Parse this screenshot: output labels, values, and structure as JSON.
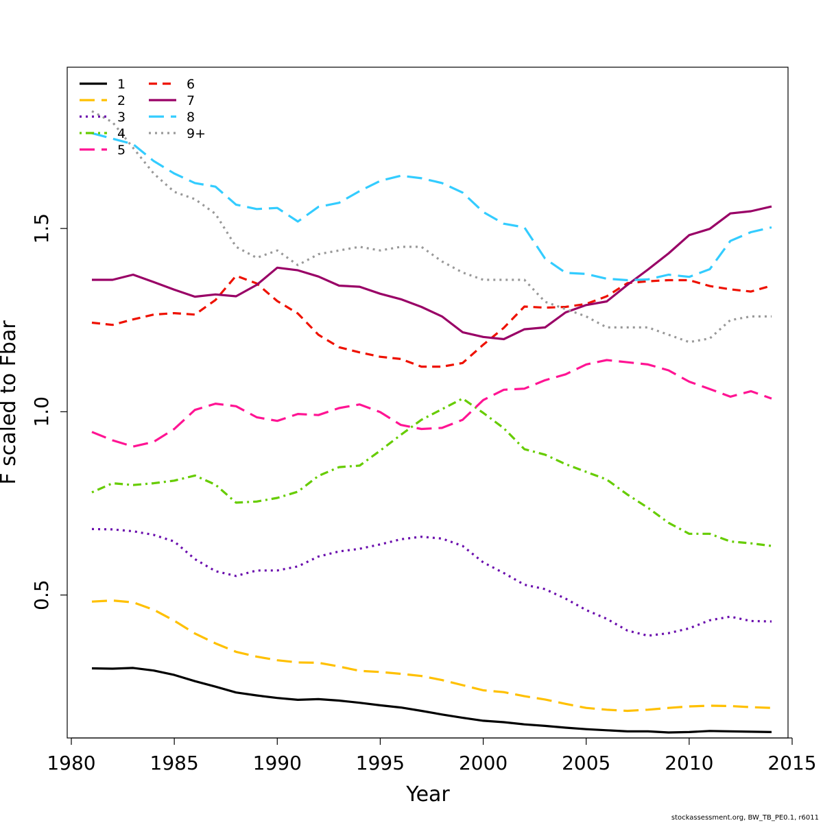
{
  "chart_data": {
    "type": "line",
    "title": "",
    "xlabel": "Year",
    "ylabel": "F scaled to Fbar",
    "xlim": [
      1980,
      2015
    ],
    "ylim": [
      0.11,
      1.94
    ],
    "x_ticks": [
      1980,
      1985,
      1990,
      1995,
      2000,
      2005,
      2010,
      2015
    ],
    "y_ticks": [
      0.5,
      1.0,
      1.5
    ],
    "x_tick_labels": [
      "1980",
      "1985",
      "1990",
      "1995",
      "2000",
      "2005",
      "2010",
      "2015"
    ],
    "y_tick_labels": [
      "0.5",
      "1.0",
      "1.5"
    ],
    "grid": false,
    "legend_position": "top-left",
    "x": [
      1981,
      1982,
      1983,
      1984,
      1985,
      1986,
      1987,
      1988,
      1989,
      1990,
      1991,
      1992,
      1993,
      1994,
      1995,
      1996,
      1997,
      1998,
      1999,
      2000,
      2001,
      2002,
      2003,
      2004,
      2005,
      2006,
      2007,
      2008,
      2009,
      2010,
      2011,
      2012,
      2013,
      2014
    ],
    "series": [
      {
        "name": "1",
        "color": "#000000",
        "dash": "solid",
        "values": [
          0.3,
          0.299,
          0.301,
          0.294,
          0.282,
          0.265,
          0.25,
          0.234,
          0.226,
          0.219,
          0.214,
          0.216,
          0.212,
          0.206,
          0.199,
          0.193,
          0.184,
          0.174,
          0.165,
          0.157,
          0.153,
          0.147,
          0.143,
          0.138,
          0.134,
          0.131,
          0.128,
          0.128,
          0.125,
          0.126,
          0.129,
          0.128,
          0.127,
          0.126
        ]
      },
      {
        "name": "2",
        "color": "#FFC000",
        "dash": "long",
        "values": [
          0.482,
          0.485,
          0.48,
          0.46,
          0.43,
          0.395,
          0.368,
          0.345,
          0.332,
          0.322,
          0.316,
          0.315,
          0.305,
          0.293,
          0.29,
          0.285,
          0.279,
          0.268,
          0.254,
          0.24,
          0.235,
          0.224,
          0.215,
          0.203,
          0.192,
          0.187,
          0.184,
          0.187,
          0.192,
          0.196,
          0.198,
          0.197,
          0.194,
          0.192
        ]
      },
      {
        "name": "3",
        "color": "#6A0DAD",
        "dash": "dotted",
        "values": [
          0.68,
          0.679,
          0.674,
          0.664,
          0.646,
          0.598,
          0.565,
          0.552,
          0.567,
          0.567,
          0.578,
          0.605,
          0.619,
          0.626,
          0.638,
          0.652,
          0.659,
          0.654,
          0.634,
          0.589,
          0.56,
          0.528,
          0.516,
          0.49,
          0.459,
          0.435,
          0.403,
          0.389,
          0.396,
          0.409,
          0.431,
          0.441,
          0.429,
          0.428
        ]
      },
      {
        "name": "4",
        "color": "#66CC00",
        "dash": "dashdot",
        "values": [
          0.78,
          0.805,
          0.8,
          0.805,
          0.812,
          0.826,
          0.801,
          0.752,
          0.755,
          0.765,
          0.782,
          0.825,
          0.849,
          0.853,
          0.894,
          0.937,
          0.978,
          1.007,
          1.036,
          0.997,
          0.955,
          0.898,
          0.883,
          0.857,
          0.836,
          0.815,
          0.774,
          0.738,
          0.697,
          0.667,
          0.667,
          0.646,
          0.641,
          0.634
        ]
      },
      {
        "name": "5",
        "color": "#FF1493",
        "dash": "long",
        "values": [
          0.945,
          0.922,
          0.905,
          0.918,
          0.953,
          1.005,
          1.022,
          1.015,
          0.985,
          0.975,
          0.994,
          0.991,
          1.01,
          1.02,
          0.999,
          0.964,
          0.953,
          0.956,
          0.978,
          1.032,
          1.06,
          1.063,
          1.086,
          1.102,
          1.129,
          1.141,
          1.135,
          1.129,
          1.113,
          1.082,
          1.062,
          1.041,
          1.056,
          1.036
        ]
      },
      {
        "name": "6",
        "color": "#EE1100",
        "dash": "dashed",
        "values": [
          1.243,
          1.237,
          1.252,
          1.265,
          1.269,
          1.265,
          1.305,
          1.371,
          1.35,
          1.302,
          1.268,
          1.21,
          1.176,
          1.162,
          1.15,
          1.144,
          1.123,
          1.123,
          1.133,
          1.183,
          1.229,
          1.287,
          1.284,
          1.286,
          1.294,
          1.315,
          1.351,
          1.356,
          1.359,
          1.359,
          1.343,
          1.334,
          1.328,
          1.344
        ]
      },
      {
        "name": "7",
        "color": "#990066",
        "dash": "solid",
        "values": [
          1.36,
          1.36,
          1.374,
          1.354,
          1.333,
          1.314,
          1.32,
          1.315,
          1.346,
          1.393,
          1.386,
          1.369,
          1.344,
          1.341,
          1.322,
          1.307,
          1.286,
          1.26,
          1.217,
          1.204,
          1.198,
          1.225,
          1.23,
          1.271,
          1.291,
          1.301,
          1.346,
          1.388,
          1.432,
          1.482,
          1.499,
          1.541,
          1.547,
          1.56
        ]
      },
      {
        "name": "8",
        "color": "#33CCFF",
        "dash": "long",
        "values": [
          1.76,
          1.745,
          1.73,
          1.684,
          1.65,
          1.624,
          1.614,
          1.565,
          1.553,
          1.556,
          1.519,
          1.559,
          1.57,
          1.602,
          1.63,
          1.644,
          1.637,
          1.624,
          1.598,
          1.545,
          1.513,
          1.503,
          1.418,
          1.379,
          1.376,
          1.363,
          1.359,
          1.361,
          1.374,
          1.368,
          1.389,
          1.466,
          1.49,
          1.503
        ]
      },
      {
        "name": "9+",
        "color": "#999999",
        "dash": "dotted",
        "values": [
          1.82,
          1.79,
          1.72,
          1.65,
          1.6,
          1.58,
          1.54,
          1.45,
          1.42,
          1.44,
          1.4,
          1.43,
          1.44,
          1.45,
          1.44,
          1.45,
          1.45,
          1.41,
          1.38,
          1.36,
          1.36,
          1.36,
          1.3,
          1.28,
          1.26,
          1.23,
          1.23,
          1.23,
          1.21,
          1.19,
          1.2,
          1.25,
          1.26,
          1.26
        ]
      }
    ]
  },
  "footnote": "stockassessment.org, BW_TB_PE0.1, r6011"
}
